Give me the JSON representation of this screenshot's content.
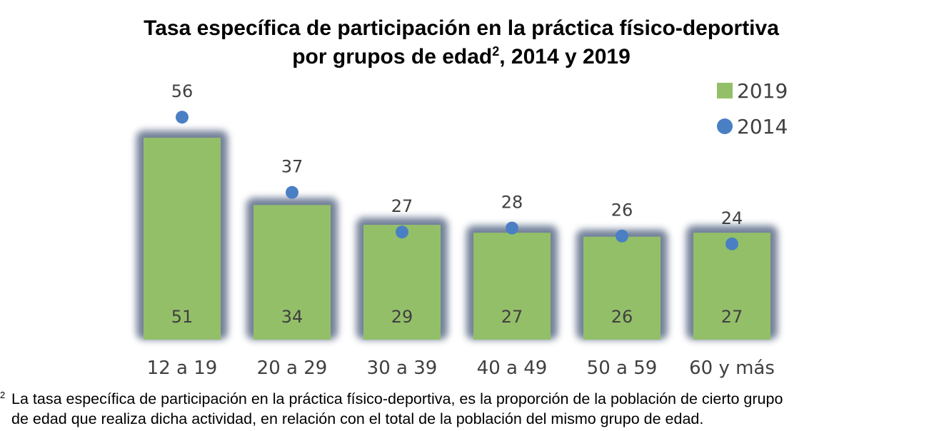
{
  "title": {
    "line1": "Tasa específica de participación en la práctica físico-deportiva",
    "line2_pre": "por grupos de edad",
    "line2_sup": "2",
    "line2_post": ", 2014 y 2019"
  },
  "legend": {
    "item_2019": "2019",
    "item_2014": "2014"
  },
  "colors": {
    "bar_2019": "#93bf69",
    "dot_2014": "#4a7fc4",
    "bar_glow": "#5a6a86",
    "label_text": "#404040"
  },
  "chart_data": {
    "type": "bar",
    "categories": [
      "12 a 19",
      "20 a 29",
      "30 a 39",
      "40 a 49",
      "50 a 59",
      "60 y más"
    ],
    "series": [
      {
        "name": "2019",
        "type": "bar",
        "values": [
          51,
          34,
          29,
          27,
          26,
          27
        ]
      },
      {
        "name": "2014",
        "type": "scatter",
        "values": [
          56,
          37,
          27,
          28,
          26,
          24
        ]
      }
    ],
    "ylim": [
      0,
      60
    ],
    "grid": false,
    "legend_position": "top-right"
  },
  "footnote": {
    "mark": "2",
    "line1": "La tasa específica de participación en la práctica físico-deportiva, es la proporción de la población de cierto grupo",
    "line2": "de edad que realiza dicha actividad, en relación con el total de la población del mismo grupo de edad."
  }
}
